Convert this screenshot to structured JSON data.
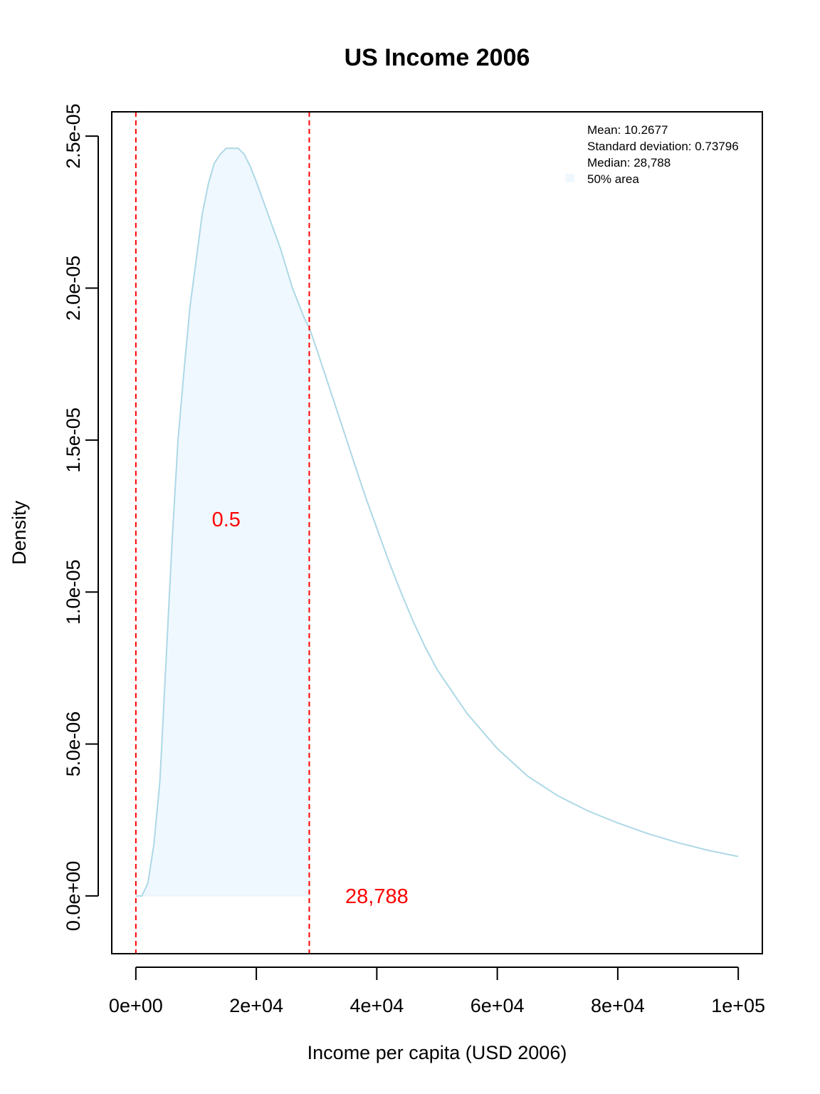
{
  "chart_data": {
    "type": "area",
    "title": "US Income 2006",
    "xlabel": "Income per capita (USD 2006)",
    "ylabel": "Density",
    "xlim": [
      -4000,
      104000
    ],
    "ylim": [
      -1.9e-06,
      2.58e-05
    ],
    "x_ticks": [
      {
        "value": 0,
        "label": "0e+00"
      },
      {
        "value": 20000,
        "label": "2e+04"
      },
      {
        "value": 40000,
        "label": "4e+04"
      },
      {
        "value": 60000,
        "label": "6e+04"
      },
      {
        "value": 80000,
        "label": "8e+04"
      },
      {
        "value": 100000,
        "label": "1e+05"
      }
    ],
    "y_ticks": [
      {
        "value": 0,
        "label": "0.0e+00"
      },
      {
        "value": 5e-06,
        "label": "5.0e-06"
      },
      {
        "value": 1e-05,
        "label": "1.0e-05"
      },
      {
        "value": 1.5e-05,
        "label": "1.5e-05"
      },
      {
        "value": 2e-05,
        "label": "2.0e-05"
      },
      {
        "value": 2.5e-05,
        "label": "2.5e-05"
      }
    ],
    "density_curve": {
      "x": [
        0,
        1000,
        2000,
        3000,
        4000,
        5000,
        6000,
        7000,
        8000,
        9000,
        10000,
        11000,
        12000,
        13000,
        14000,
        15000,
        16000,
        17000,
        18000,
        19000,
        20000,
        22000,
        24000,
        26000,
        28000,
        28788,
        30000,
        32000,
        34000,
        36000,
        38000,
        40000,
        42000,
        44000,
        46000,
        48000,
        50000,
        55000,
        60000,
        65000,
        70000,
        75000,
        80000,
        85000,
        90000,
        95000,
        100000
      ],
      "y": [
        0,
        0,
        4.2e-07,
        1.7e-06,
        3.8e-06,
        7.7e-06,
        1.16e-05,
        1.5e-05,
        1.73e-05,
        1.94e-05,
        2.09e-05,
        2.24e-05,
        2.34e-05,
        2.41e-05,
        2.44e-05,
        2.46e-05,
        2.46e-05,
        2.46e-05,
        2.44e-05,
        2.4e-05,
        2.35e-05,
        2.24e-05,
        2.13e-05,
        2e-05,
        1.9e-05,
        1.87e-05,
        1.8e-05,
        1.68e-05,
        1.56e-05,
        1.44e-05,
        1.32e-05,
        1.21e-05,
        1.1e-05,
        1e-05,
        9.05e-06,
        8.2e-06,
        7.45e-06,
        6e-06,
        4.85e-06,
        3.95e-06,
        3.3e-06,
        2.8e-06,
        2.4e-06,
        2.05e-06,
        1.75e-06,
        1.5e-06,
        1.3e-06
      ]
    },
    "shaded_region": {
      "from": 0,
      "to": 28788,
      "label": "0.5",
      "label_x": 15000,
      "label_y": 1.24e-05
    },
    "vertical_lines": [
      0,
      28788
    ],
    "median_label": {
      "text": "28,788",
      "x": 40000,
      "y": 0
    },
    "legend": {
      "position": "top-right",
      "items": [
        "Mean: 10.2677",
        "Standard deviation: 0.73796",
        "Median: 28,788",
        "50% area"
      ]
    },
    "colors": {
      "curve": "#add8e6",
      "fill": "#f0f8ff",
      "fill_edge": "#e3f0f7",
      "vline": "#ff0000",
      "annotation": "#ff0000",
      "axis": "#000000"
    }
  }
}
